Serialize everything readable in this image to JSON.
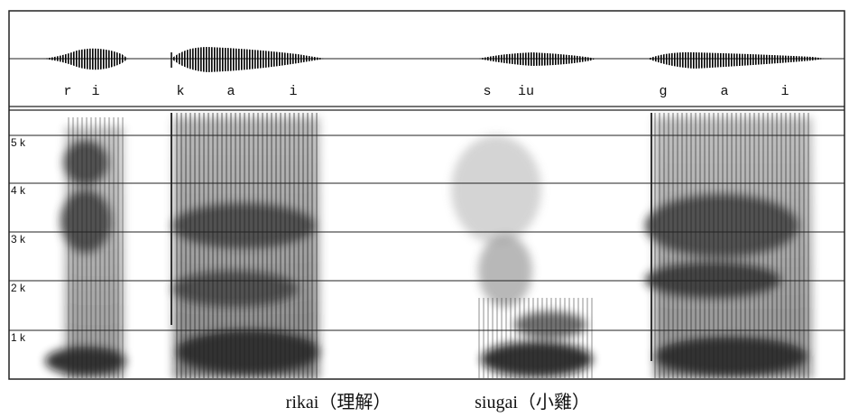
{
  "phonemes": [
    "r",
    "i",
    "k",
    "a",
    "i",
    "s",
    "iu",
    "g",
    "a",
    "i"
  ],
  "frequency_labels": [
    "5 k",
    "4 k",
    "3 k",
    "2 k",
    "1 k"
  ],
  "captions": [
    "rikai（理解）",
    "siugai（小雞）"
  ]
}
